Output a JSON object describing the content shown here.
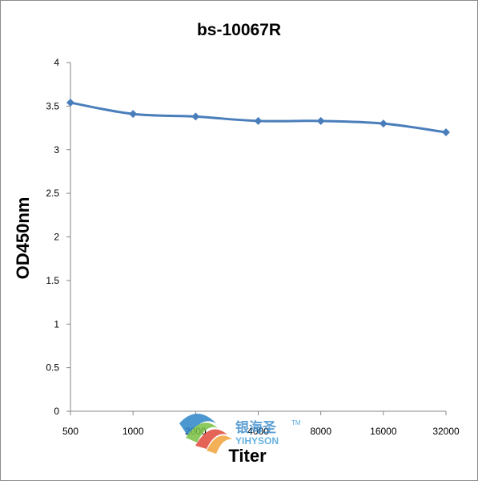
{
  "chart_data": {
    "type": "line",
    "title": "bs-10067R",
    "xlabel": "Titer",
    "ylabel": "OD450nm",
    "categories": [
      "500",
      "1000",
      "2000",
      "4000",
      "8000",
      "16000",
      "32000"
    ],
    "series": [
      {
        "values": [
          3.54,
          3.41,
          3.38,
          3.33,
          3.33,
          3.3,
          3.2
        ],
        "color": "#4a7ebb",
        "marker": "diamond"
      }
    ],
    "ylim": [
      0,
      4
    ],
    "yticks": [
      "0",
      "0.5",
      "1",
      "1.5",
      "2",
      "2.5",
      "3",
      "3.5",
      "4"
    ],
    "grid": false,
    "legend": "none"
  },
  "watermark": {
    "cn_text": "银海圣",
    "en_text": "YIHYSON",
    "tm": "TM",
    "logo_colors": [
      "#2f86c8",
      "#79c043",
      "#e04a3c",
      "#f2a33a"
    ]
  }
}
